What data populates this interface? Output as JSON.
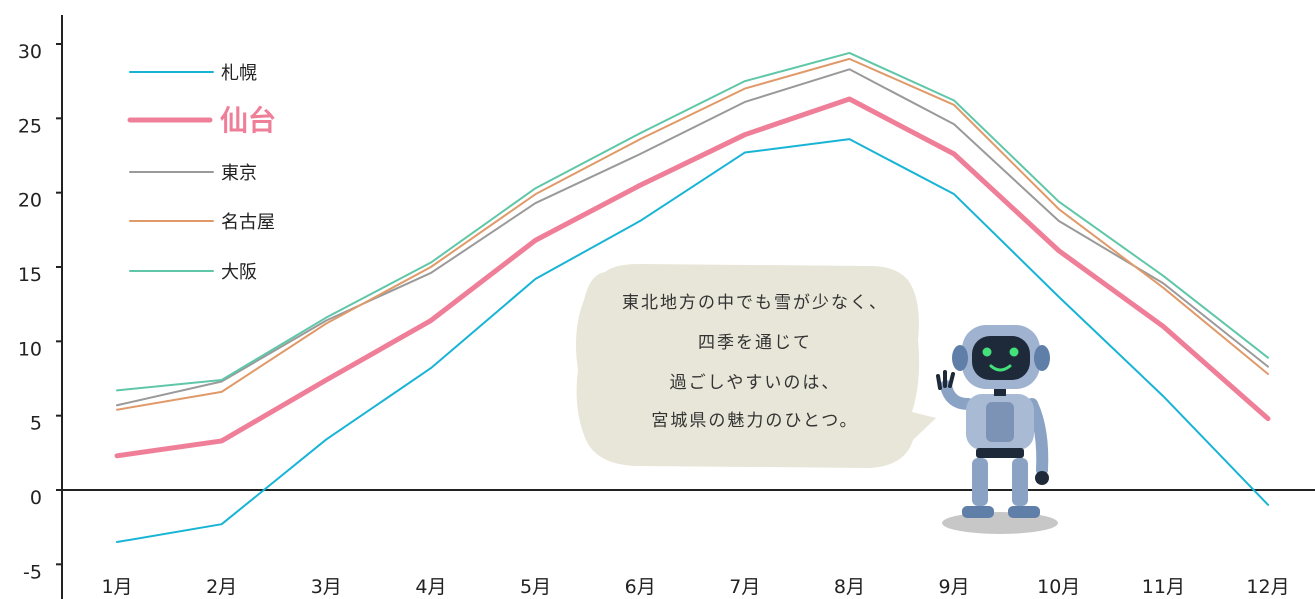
{
  "chart_data": {
    "type": "line",
    "categories": [
      "1月",
      "2月",
      "3月",
      "4月",
      "5月",
      "6月",
      "7月",
      "8月",
      "9月",
      "10月",
      "11月",
      "12月"
    ],
    "ylim": [
      -6,
      32
    ],
    "yticks": [
      -5,
      0,
      5,
      10,
      15,
      20,
      25,
      30
    ],
    "ytick_labels": [
      "-5",
      "0",
      "5",
      "10",
      "15",
      "20",
      "25",
      "30"
    ],
    "grid": false,
    "legend_position": "top-left",
    "highlight_series": "仙台",
    "series": [
      {
        "name": "札幌",
        "color": "#18b4d6",
        "values": [
          -3.5,
          -2.3,
          3.4,
          8.2,
          14.2,
          18.1,
          22.7,
          23.6,
          19.9,
          13.0,
          6.3,
          -1.0
        ]
      },
      {
        "name": "仙台",
        "color": "#ef7f98",
        "values": [
          2.3,
          3.3,
          7.4,
          11.4,
          16.8,
          20.5,
          23.9,
          26.3,
          22.6,
          16.1,
          11.0,
          4.8
        ]
      },
      {
        "name": "東京",
        "color": "#9a9a9a",
        "values": [
          5.7,
          7.3,
          11.4,
          14.6,
          19.3,
          22.6,
          26.1,
          28.3,
          24.6,
          18.1,
          13.9,
          8.3
        ]
      },
      {
        "name": "名古屋",
        "color": "#e09a6a",
        "values": [
          5.4,
          6.6,
          11.2,
          15.0,
          19.9,
          23.6,
          27.0,
          29.0,
          25.9,
          18.9,
          13.6,
          7.8
        ]
      },
      {
        "name": "大阪",
        "color": "#5fc7a8",
        "values": [
          6.7,
          7.4,
          11.6,
          15.3,
          20.3,
          24.0,
          27.5,
          29.4,
          26.2,
          19.4,
          14.4,
          8.9
        ]
      }
    ],
    "annotation": [
      "東北地方の中でも雪が少なく、",
      "四季を通じて",
      "過ごしやすいのは、",
      "宮城県の魅力のひとつ。"
    ]
  }
}
